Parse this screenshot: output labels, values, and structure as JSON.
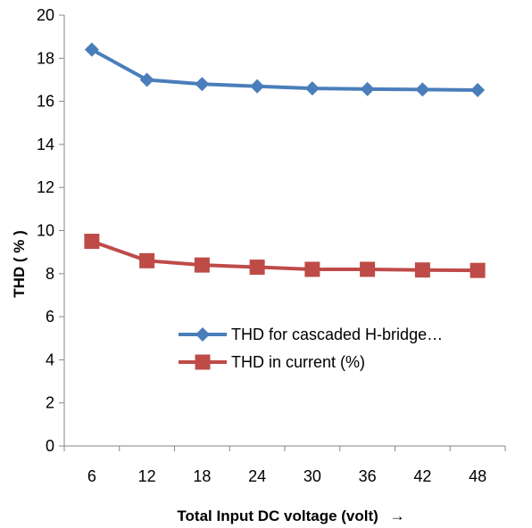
{
  "chart_data": {
    "type": "line",
    "title": "",
    "xlabel": "Total Input DC voltage (volt)",
    "xlabel_arrow": "→",
    "ylabel": "THD  ( % )",
    "categories": [
      "6",
      "12",
      "18",
      "24",
      "30",
      "36",
      "42",
      "48"
    ],
    "y_ticks": [
      "0",
      "2",
      "4",
      "6",
      "8",
      "10",
      "12",
      "14",
      "16",
      "18",
      "20"
    ],
    "ylim": [
      0,
      20
    ],
    "grid": false,
    "legend_position": "center-right",
    "series": [
      {
        "name": "THD for cascaded H-bridge…",
        "color": "#4a7ebb",
        "marker": "diamond",
        "values": [
          18.4,
          17.0,
          16.8,
          16.7,
          16.6,
          16.57,
          16.55,
          16.52
        ]
      },
      {
        "name": "THD in current (%)",
        "color": "#be4b48",
        "marker": "square",
        "values": [
          9.5,
          8.6,
          8.4,
          8.3,
          8.2,
          8.2,
          8.17,
          8.15
        ]
      }
    ]
  }
}
